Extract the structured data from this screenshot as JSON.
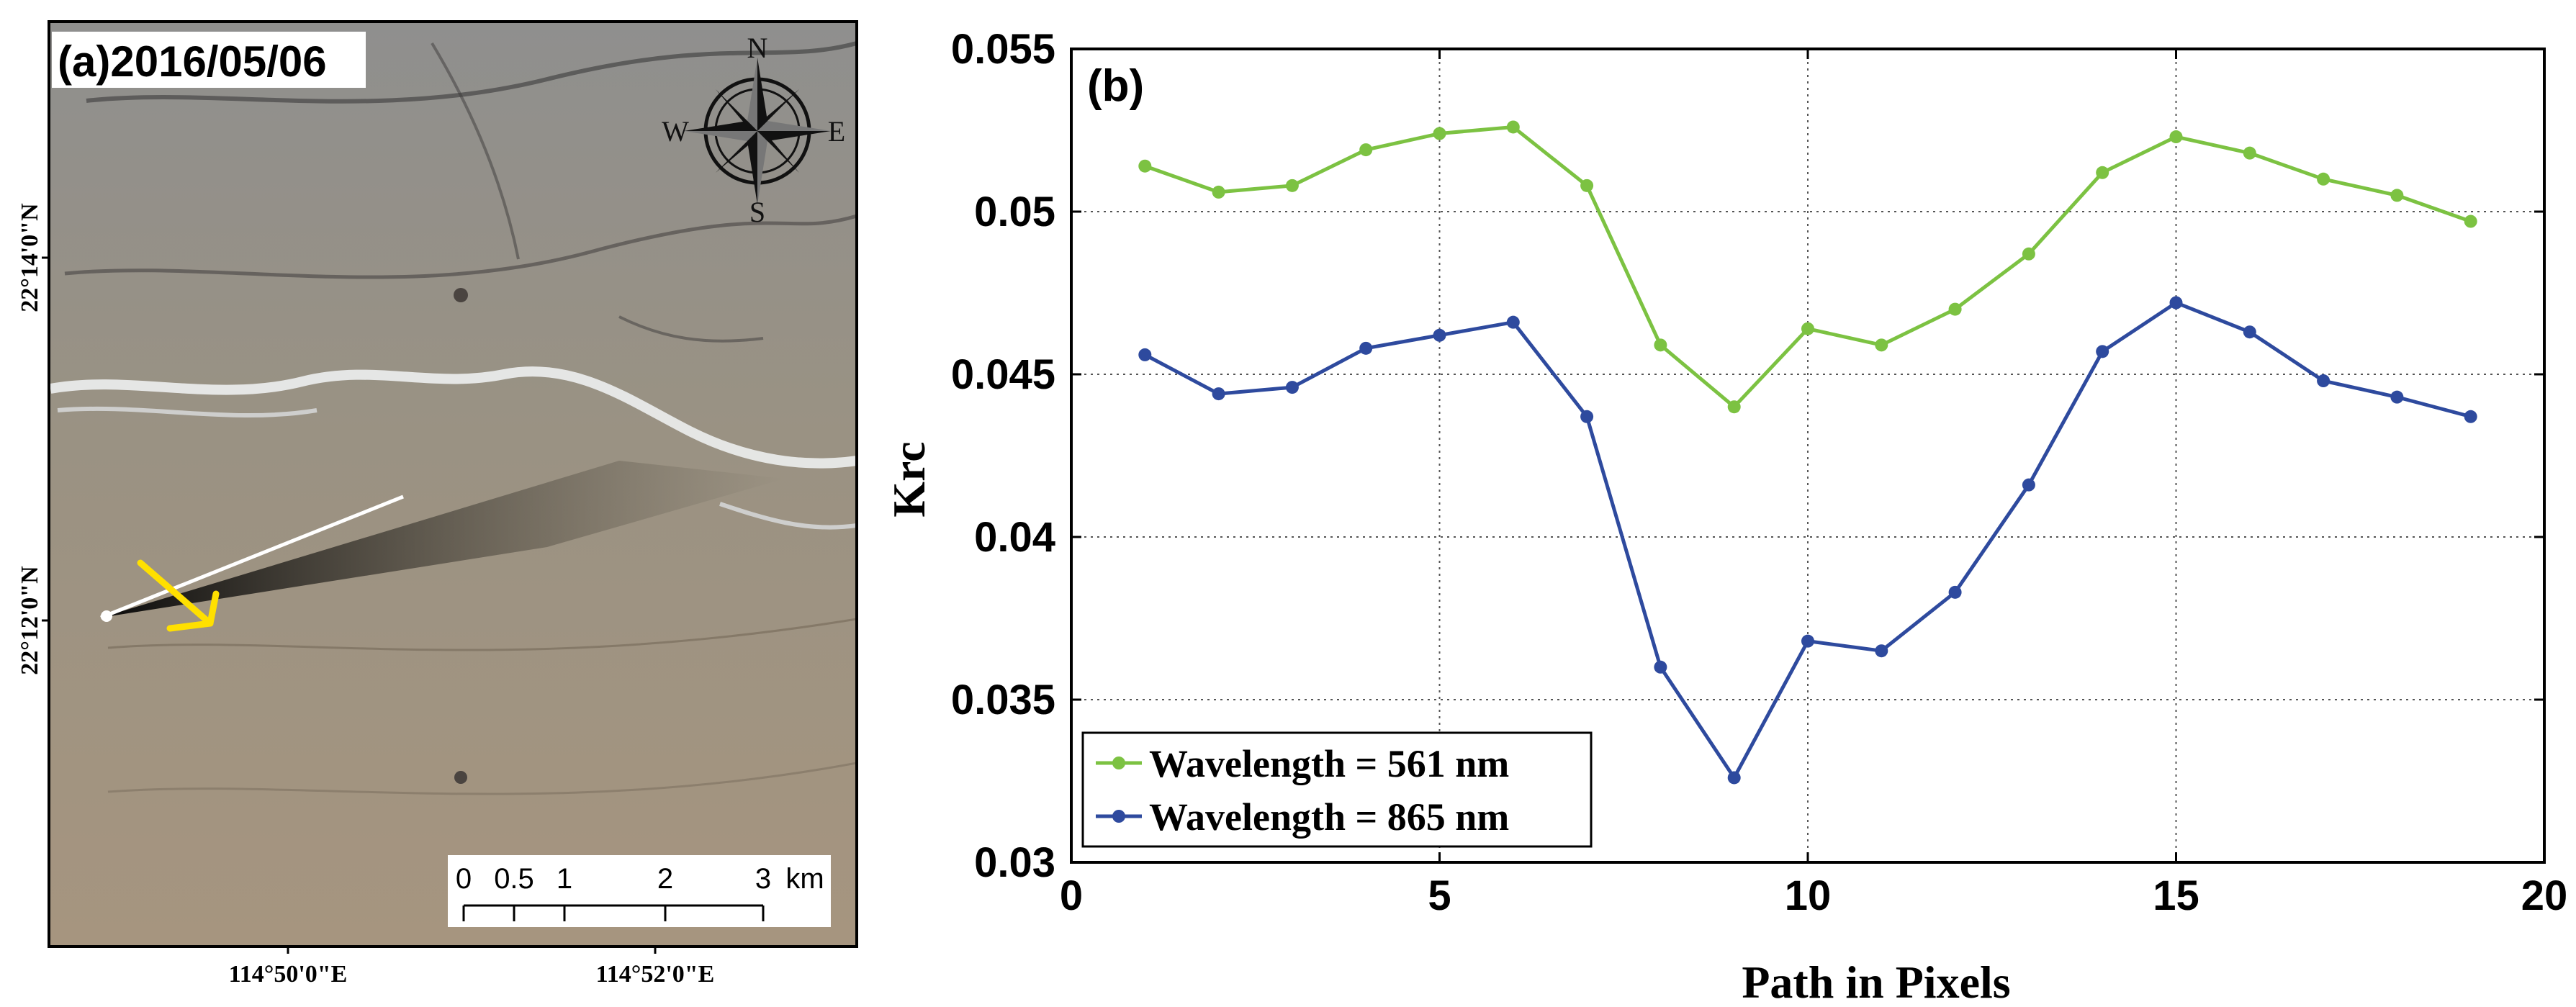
{
  "panel_a": {
    "label": "(a)2016/05/06",
    "lat_labels": [
      "22°14'0\"N",
      "22°12'0\"N"
    ],
    "lon_labels": [
      "114°50'0\"E",
      "114°52'0\"E"
    ],
    "compass": {
      "n": "N",
      "s": "S",
      "e": "E",
      "w": "W"
    },
    "scale_bar": {
      "ticks": [
        "0",
        "0.5",
        "1",
        "2",
        "3"
      ],
      "unit": "km"
    },
    "colors": {
      "arrow": "#ffe000",
      "compass": "#111111"
    }
  },
  "chart_data": {
    "type": "line",
    "panel_label": "(b)",
    "title": "",
    "xlabel": "Path in Pixels",
    "ylabel": "Krc",
    "xlim": [
      0,
      20
    ],
    "ylim": [
      0.03,
      0.055
    ],
    "xticks": [
      0,
      5,
      10,
      15,
      20
    ],
    "xtick_labels": [
      "0",
      "5",
      "10",
      "15",
      "20"
    ],
    "yticks": [
      0.03,
      0.035,
      0.04,
      0.045,
      0.05,
      0.055
    ],
    "ytick_labels": [
      "0.03",
      "0.035",
      "0.04",
      "0.045",
      "0.05",
      "0.055"
    ],
    "grid": true,
    "legend_position": "bottom-left",
    "x": [
      1,
      2,
      3,
      4,
      5,
      6,
      7,
      8,
      9,
      10,
      11,
      12,
      13,
      14,
      15,
      16,
      17,
      18,
      19
    ],
    "series": [
      {
        "name": "Wavelength = 561 nm",
        "color": "#7cc242",
        "values": [
          0.0514,
          0.0506,
          0.0508,
          0.0519,
          0.0524,
          0.0526,
          0.0508,
          0.0459,
          0.044,
          0.0464,
          0.0459,
          0.047,
          0.0487,
          0.0512,
          0.0523,
          0.0518,
          0.051,
          0.0505,
          0.0497
        ]
      },
      {
        "name": "Wavelength = 865 nm",
        "color": "#2e4a9e",
        "values": [
          0.0456,
          0.0444,
          0.0446,
          0.0458,
          0.0462,
          0.0466,
          0.0437,
          0.036,
          0.0326,
          0.0368,
          0.0365,
          0.0383,
          0.0416,
          0.0457,
          0.0472,
          0.0463,
          0.0448,
          0.0443,
          0.0437
        ]
      }
    ]
  }
}
